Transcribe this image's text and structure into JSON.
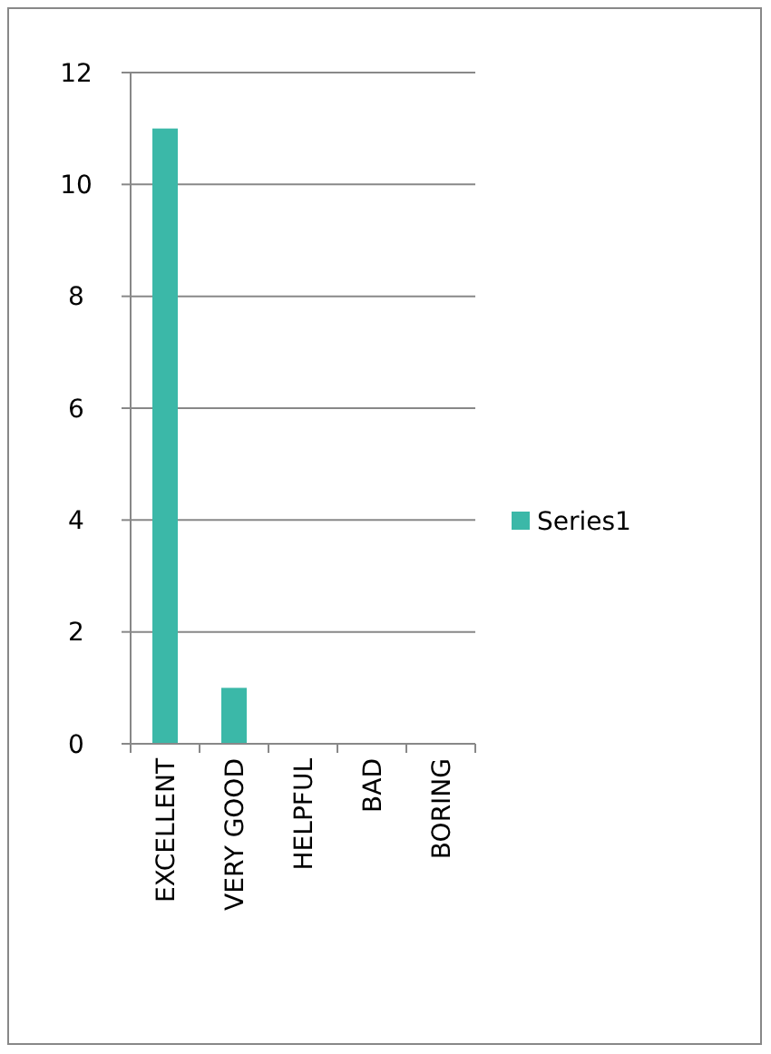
{
  "chart_data": {
    "type": "bar",
    "categories": [
      "EXCELLENT",
      "VERY GOOD",
      "HELPFUL",
      "BAD",
      "BORING"
    ],
    "series": [
      {
        "name": "Series1",
        "color": "#3bb8a8",
        "values": [
          11,
          1,
          0,
          0,
          0
        ]
      }
    ],
    "ylim": [
      0,
      12
    ],
    "yticks": [
      0,
      2,
      4,
      6,
      8,
      10,
      12
    ],
    "grid": "y",
    "legend": "right"
  }
}
